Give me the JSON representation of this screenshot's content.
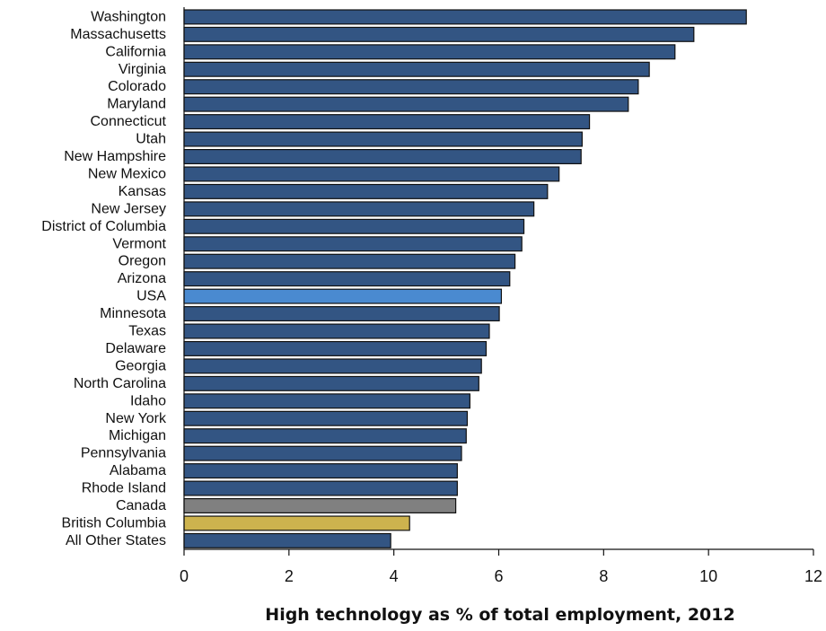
{
  "chart_data": {
    "type": "bar",
    "orientation": "horizontal",
    "categories": [
      "Washington",
      "Massachusetts",
      "California",
      "Virginia",
      "Colorado",
      "Maryland",
      "Connecticut",
      "Utah",
      "New Hampshire",
      "New Mexico",
      "Kansas",
      "New Jersey",
      "District of Columbia",
      "Vermont",
      "Oregon",
      "Arizona",
      "USA",
      "Minnesota",
      "Texas",
      "Delaware",
      "Georgia",
      "North Carolina",
      "Idaho",
      "New York",
      "Michigan",
      "Pennsylvania",
      "Alabama",
      "Rhode Island",
      "Canada",
      "British Columbia",
      "All Other States"
    ],
    "values": [
      10.72,
      9.72,
      9.36,
      8.87,
      8.66,
      8.47,
      7.73,
      7.59,
      7.57,
      7.15,
      6.93,
      6.67,
      6.48,
      6.44,
      6.31,
      6.21,
      6.05,
      6.01,
      5.82,
      5.76,
      5.67,
      5.62,
      5.45,
      5.4,
      5.38,
      5.29,
      5.21,
      5.21,
      5.18,
      4.3,
      3.94
    ],
    "colors": {
      "default": "#335583",
      "USA": "#4a8ad0",
      "Canada": "#808080",
      "British Columbia": "#cdb34e"
    },
    "xlabel": "High technology as % of total employment, 2012",
    "ylabel": "",
    "title": "",
    "xlim": [
      0,
      12
    ],
    "x_ticks": [
      0,
      2,
      4,
      6,
      8,
      10,
      12
    ],
    "grid": false,
    "legend": "none"
  }
}
